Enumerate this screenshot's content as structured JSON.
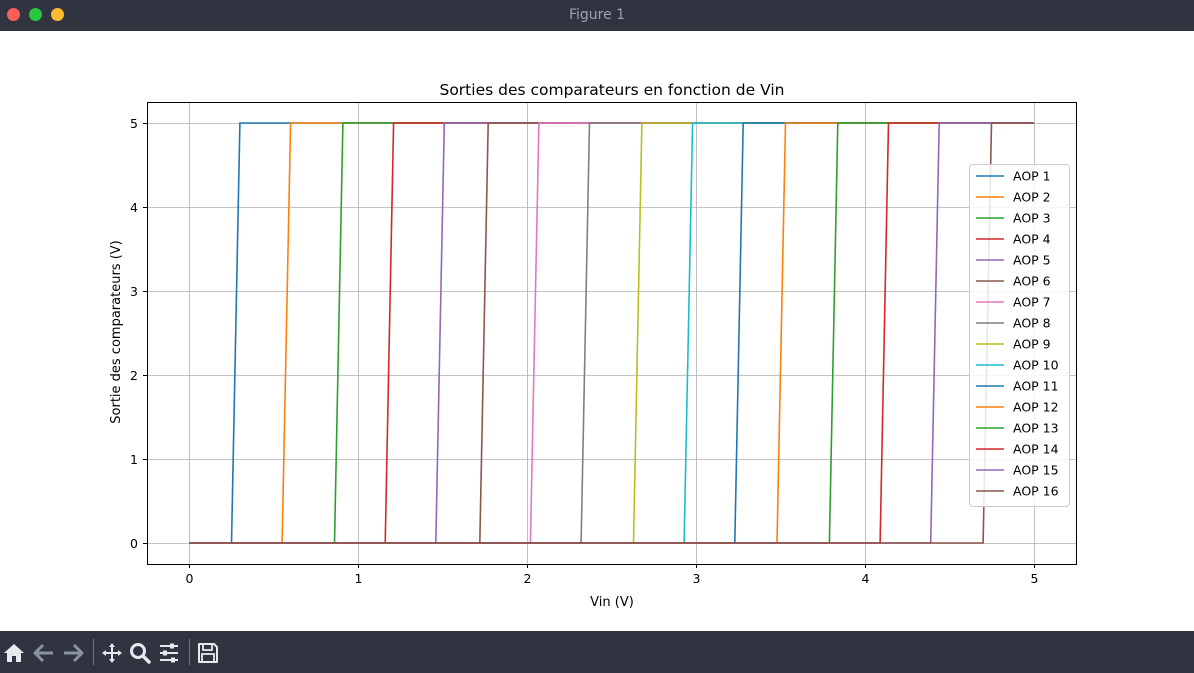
{
  "window": {
    "title": "Figure 1"
  },
  "colors": {
    "titlebar": "#2f3440",
    "close": "#fe5f57",
    "maximize": "#29c73f",
    "minimize": "#febb2e"
  },
  "toolbar": {
    "items": [
      {
        "name": "home-icon"
      },
      {
        "name": "back-icon"
      },
      {
        "name": "forward-icon"
      },
      {
        "name": "pan-icon"
      },
      {
        "name": "zoom-icon"
      },
      {
        "name": "configure-subplots-icon"
      },
      {
        "name": "save-icon"
      }
    ]
  },
  "chart_data": {
    "type": "line",
    "title": "Sorties des comparateurs en fonction de Vin",
    "xlabel": "Vin (V)",
    "ylabel": "Sortie des comparateurs (V)",
    "xlim": [
      -0.25,
      5.25
    ],
    "ylim": [
      -0.25,
      5.25
    ],
    "xticks": [
      0,
      1,
      2,
      3,
      4,
      5
    ],
    "yticks": [
      0,
      1,
      2,
      3,
      4,
      5
    ],
    "grid": true,
    "legend_position": "right",
    "series": [
      {
        "name": "AOP 1",
        "color": "#1f77b4",
        "switch_from": 0.25,
        "switch_to": 0.3,
        "x_end": 5.0
      },
      {
        "name": "AOP 2",
        "color": "#ff7f0e",
        "switch_from": 0.55,
        "switch_to": 0.6,
        "x_end": 5.0
      },
      {
        "name": "AOP 3",
        "color": "#2ca02c",
        "switch_from": 0.86,
        "switch_to": 0.91,
        "x_end": 5.0
      },
      {
        "name": "AOP 4",
        "color": "#d62728",
        "switch_from": 1.16,
        "switch_to": 1.21,
        "x_end": 5.0
      },
      {
        "name": "AOP 5",
        "color": "#9467bd",
        "switch_from": 1.46,
        "switch_to": 1.51,
        "x_end": 5.0
      },
      {
        "name": "AOP 6",
        "color": "#8c564b",
        "switch_from": 1.72,
        "switch_to": 1.77,
        "x_end": 5.0
      },
      {
        "name": "AOP 7",
        "color": "#e377c2",
        "switch_from": 2.02,
        "switch_to": 2.07,
        "x_end": 5.0
      },
      {
        "name": "AOP 8",
        "color": "#7f7f7f",
        "switch_from": 2.32,
        "switch_to": 2.37,
        "x_end": 5.0
      },
      {
        "name": "AOP 9",
        "color": "#bcbd22",
        "switch_from": 2.63,
        "switch_to": 2.68,
        "x_end": 5.0
      },
      {
        "name": "AOP 10",
        "color": "#17becf",
        "switch_from": 2.93,
        "switch_to": 2.98,
        "x_end": 5.0
      },
      {
        "name": "AOP 11",
        "color": "#1f77b4",
        "switch_from": 3.23,
        "switch_to": 3.28,
        "x_end": 5.0
      },
      {
        "name": "AOP 12",
        "color": "#ff7f0e",
        "switch_from": 3.48,
        "switch_to": 3.53,
        "x_end": 5.0
      },
      {
        "name": "AOP 13",
        "color": "#2ca02c",
        "switch_from": 3.79,
        "switch_to": 3.84,
        "x_end": 5.0
      },
      {
        "name": "AOP 14",
        "color": "#d62728",
        "switch_from": 4.09,
        "switch_to": 4.14,
        "x_end": 5.0
      },
      {
        "name": "AOP 15",
        "color": "#9467bd",
        "switch_from": 4.39,
        "switch_to": 4.44,
        "x_end": 5.0
      },
      {
        "name": "AOP 16",
        "color": "#8c564b",
        "switch_from": 4.7,
        "switch_to": 4.75,
        "x_end": 5.0
      }
    ],
    "low_value": 0,
    "high_value": 5,
    "x_start": 0
  }
}
